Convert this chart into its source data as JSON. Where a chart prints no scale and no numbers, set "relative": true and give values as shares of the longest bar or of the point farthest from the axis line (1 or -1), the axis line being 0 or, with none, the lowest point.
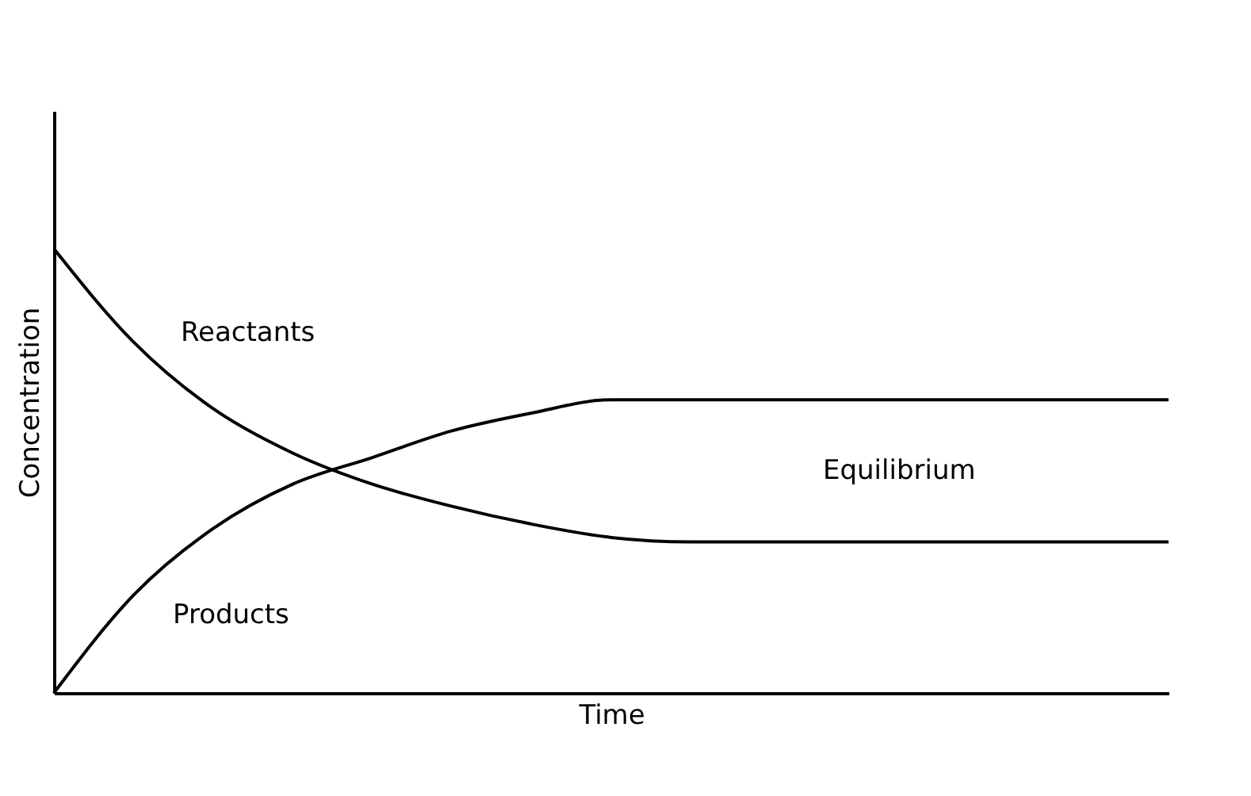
{
  "chart_data": {
    "type": "line",
    "relative": true,
    "xlabel": "Time",
    "ylabel": "Concentration",
    "tick_labels": false,
    "grid": false,
    "legend": false,
    "marker": "none",
    "line_style": "solid",
    "categories": [
      null,
      null,
      null,
      null,
      null,
      null,
      null,
      null,
      null,
      null,
      null,
      null,
      null,
      null,
      null
    ],
    "series": [
      {
        "name": "Reactants",
        "color": "#000000",
        "values": [
          1.0,
          0.79,
          0.64,
          0.54,
          0.47,
          0.42,
          0.38,
          0.35,
          0.34,
          0.34,
          0.34,
          0.34,
          0.34,
          0.34,
          0.34
        ]
      },
      {
        "name": "Products",
        "color": "#000000",
        "values": [
          0.0,
          0.22,
          0.37,
          0.47,
          0.53,
          0.59,
          0.63,
          0.66,
          0.66,
          0.66,
          0.66,
          0.66,
          0.66,
          0.66,
          0.66
        ]
      }
    ],
    "annotations": [
      "Equilibrium"
    ]
  }
}
